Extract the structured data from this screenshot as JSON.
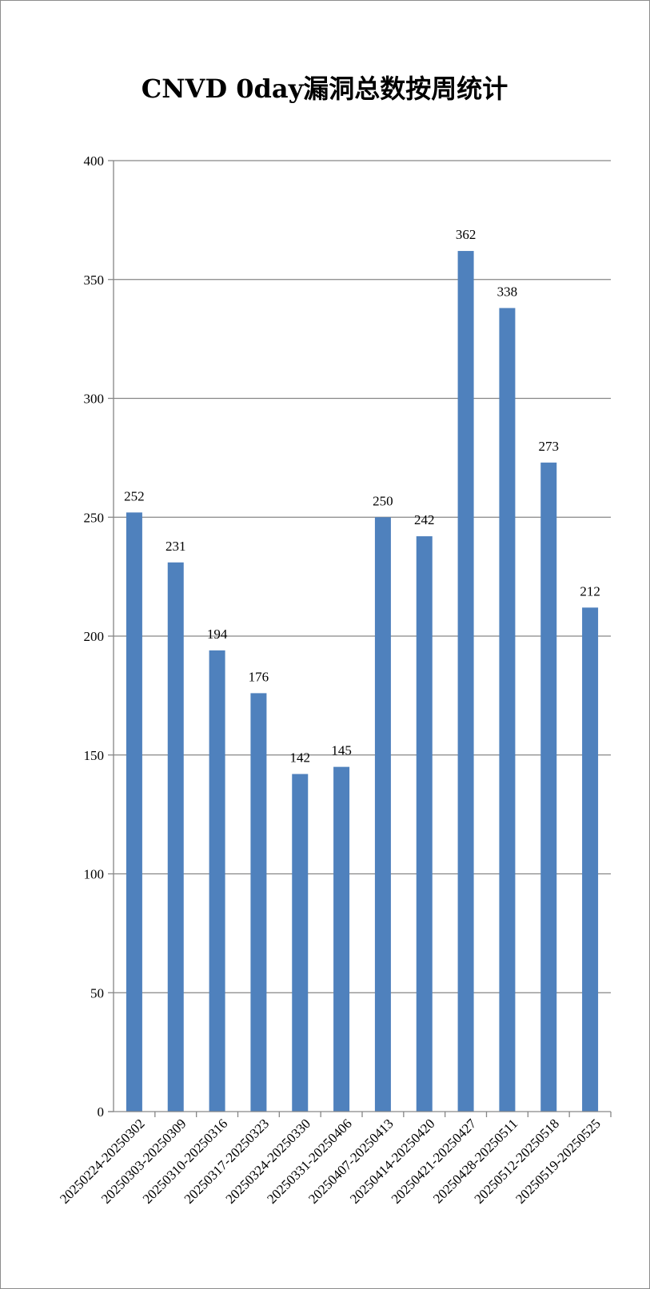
{
  "chart_data": {
    "type": "bar",
    "title": "CNVD 0day漏洞总数按周统计",
    "categories": [
      "20250224-20250302",
      "20250303-20250309",
      "20250310-20250316",
      "20250317-20250323",
      "20250324-20250330",
      "20250331-20250406",
      "20250407-20250413",
      "20250414-20250420",
      "20250421-20250427",
      "20250428-20250511",
      "20250512-20250518",
      "20250519-20250525"
    ],
    "values": [
      252,
      231,
      194,
      176,
      142,
      145,
      250,
      242,
      362,
      338,
      273,
      212
    ],
    "ylim": [
      0,
      400
    ],
    "yticks": [
      0,
      50,
      100,
      150,
      200,
      250,
      300,
      350,
      400
    ],
    "grid": true,
    "legend": "none",
    "bar_color": "#4f81bd",
    "grid_color": "#868686"
  }
}
